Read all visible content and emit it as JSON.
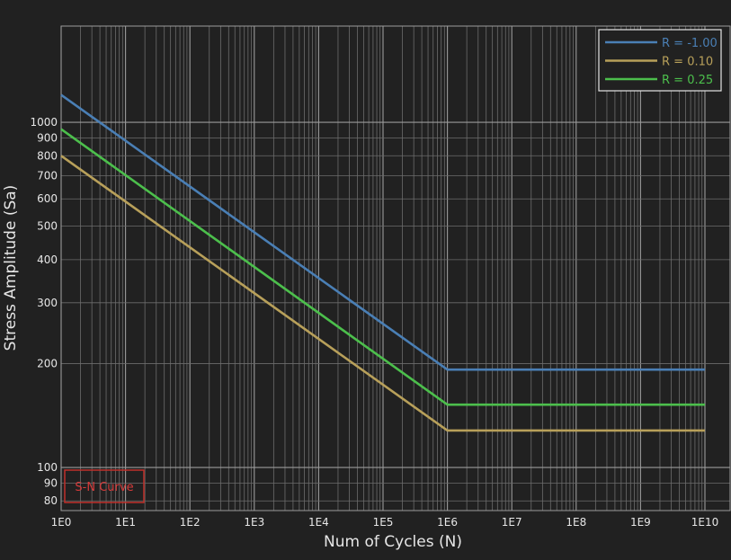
{
  "chart_data": {
    "type": "line",
    "xlabel": "Num of Cycles (N)",
    "ylabel": "Stress Amplitude (Sa)",
    "xscale": "log",
    "yscale": "log",
    "xlim": [
      1,
      10000000000
    ],
    "ylim": [
      75,
      1900
    ],
    "x_ticks": [
      {
        "value": 1,
        "label": "1E0"
      },
      {
        "value": 10,
        "label": "1E1"
      },
      {
        "value": 100,
        "label": "1E2"
      },
      {
        "value": 1000,
        "label": "1E3"
      },
      {
        "value": 10000,
        "label": "1E4"
      },
      {
        "value": 100000,
        "label": "1E5"
      },
      {
        "value": 1000000,
        "label": "1E6"
      },
      {
        "value": 10000000,
        "label": "1E7"
      },
      {
        "value": 100000000,
        "label": "1E8"
      },
      {
        "value": 1000000000,
        "label": "1E9"
      },
      {
        "value": 10000000000,
        "label": "1E10"
      }
    ],
    "y_ticks": [
      {
        "value": 80,
        "label": "80"
      },
      {
        "value": 90,
        "label": "90"
      },
      {
        "value": 100,
        "label": "100"
      },
      {
        "value": 200,
        "label": "200"
      },
      {
        "value": 300,
        "label": "300"
      },
      {
        "value": 400,
        "label": "400"
      },
      {
        "value": 500,
        "label": "500"
      },
      {
        "value": 600,
        "label": "600"
      },
      {
        "value": 700,
        "label": "700"
      },
      {
        "value": 800,
        "label": "800"
      },
      {
        "value": 900,
        "label": "900"
      },
      {
        "value": 1000,
        "label": "1000"
      }
    ],
    "grid": true,
    "legend_position": "top-right",
    "series": [
      {
        "name": "R = -1.00",
        "color": "#4a7fb5",
        "x": [
          1,
          1000000,
          10000000000
        ],
        "y": [
          1200,
          192,
          192
        ]
      },
      {
        "name": "R = 0.10",
        "color": "#b8a05a",
        "x": [
          1,
          1000000,
          10000000000
        ],
        "y": [
          800,
          128,
          128
        ]
      },
      {
        "name": "R = 0.25",
        "color": "#4cbf4c",
        "x": [
          1,
          1000000,
          10000000000
        ],
        "y": [
          955,
          152,
          152
        ]
      }
    ],
    "annotation": "S-N Curve"
  }
}
